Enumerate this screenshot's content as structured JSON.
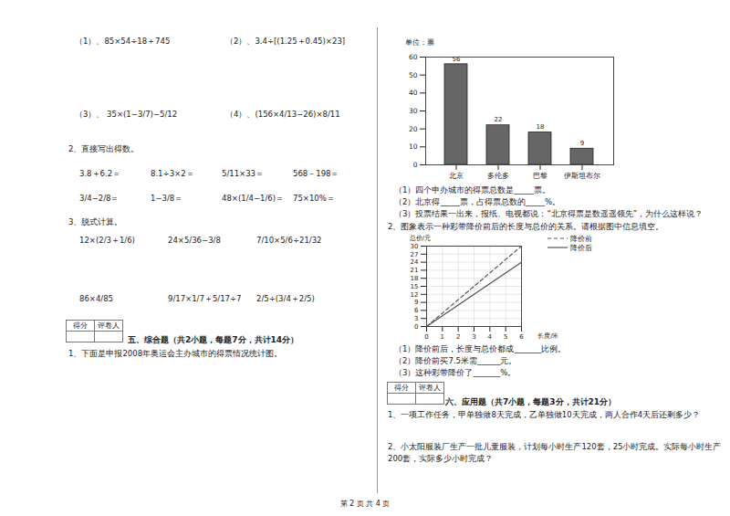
{
  "document": {
    "left": {
      "calc1": [
        [
          "（1）、85×54÷18＋745",
          "（2）、3.4÷[(1.25＋0.45)×23]"
        ],
        [
          "（3）、 35×(1−3/7)−5/12",
          "（4）、(156×4/13−26)×8/11"
        ]
      ],
      "q2": {
        "title": "2、直接写出得数。",
        "rows": [
          [
            "3.8＋6.2＝",
            "8.1÷3×2＝",
            "5/11×33＝",
            "568－198＝"
          ],
          [
            "3/4−2/8＝",
            "1−3/8＝",
            "48×(1/4−1/6)＝",
            "75×10%＝"
          ]
        ]
      },
      "q3": {
        "title": "3、脱式计算。",
        "rows": [
          [
            "12×(2/3＋1/6)",
            "24×5/36−3/8",
            "7/10×5/6÷21/32"
          ],
          [
            "86×4/85",
            "9/17×1/7＋5/17÷7",
            "2/5÷(3/4＋2/5)"
          ]
        ]
      },
      "score_box": [
        "得分",
        "评卷人"
      ],
      "section5": "五、综合题（共2小题，每题7分，共计14分）",
      "s5q1": "1、下面是申报2008年奥运会主办城市的得票情况统计图。"
    },
    "right": {
      "bar_questions": [
        "（1）四个申办城市的得票总数是_____票。",
        "（2）北京得_____票，占得票总数的_____%。",
        "（3）投票结果一出来，报纸、电视都说：“北京得票是数遥遥领先”，为什么这样说？"
      ],
      "q2": "2、图象表示一种彩带降价前后的长度与总价的关系。请根据图中信息填空。",
      "line_questions": [
        "（1）降价前后，长度与总价都成_______比例。",
        "（2）降价前买7.5米需______元。",
        "（3）这种彩带降价了_______%。"
      ],
      "score_box": [
        "得分",
        "评卷人"
      ],
      "section6": "六、应用题（共7小题，每题3分，共计21分）",
      "problems": [
        "1、一项工作任务，甲单独做8天完成，乙单独做10天完成，两人合作4天后还剩多少？",
        "2、小太阳服装厂生产一批儿童服装，计划每小时生产120套，25小时完成。实际每小时生产",
        "200套，实际多少小时完成？"
      ]
    },
    "footer": "第 2 页 共 4 页"
  },
  "chart_data": [
    {
      "type": "bar",
      "y_label": "单位：票",
      "categories": [
        "北京",
        "多伦多",
        "巴黎",
        "伊斯坦布尔"
      ],
      "values": [
        56,
        22,
        18,
        9
      ],
      "color": "#666666",
      "ylim": [
        0,
        60
      ],
      "yticks": [
        0,
        10,
        20,
        30,
        40,
        50,
        60
      ],
      "data_labels": true,
      "grid": false
    },
    {
      "type": "line",
      "x_label": "长度/米",
      "y_label": "总价/元",
      "x": [
        0,
        6
      ],
      "series": [
        {
          "name": "降价前",
          "color": "#555555",
          "line_style": "dashed",
          "values": [
            0,
            30
          ]
        },
        {
          "name": "降价后",
          "color": "#555555",
          "line_style": "solid",
          "values": [
            0,
            24
          ]
        }
      ],
      "xlim": [
        0,
        6
      ],
      "xticks": [
        0,
        1,
        2,
        3,
        4,
        5,
        6
      ],
      "ylim": [
        0,
        30
      ],
      "yticks": [
        0,
        3,
        6,
        9,
        12,
        15,
        18,
        21,
        24,
        27,
        30
      ],
      "grid": true,
      "legend": "top-right"
    }
  ]
}
